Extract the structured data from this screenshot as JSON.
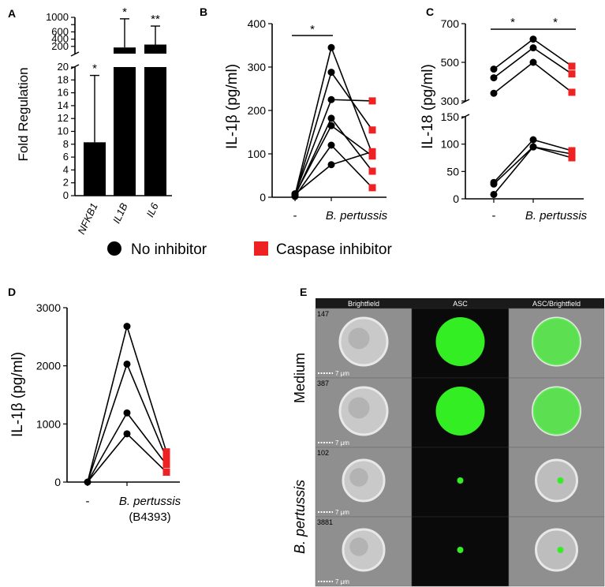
{
  "legend": {
    "no_inhibitor": "No inhibitor",
    "caspase_inhibitor": "Caspase inhibitor",
    "colors": {
      "no_inhibitor": "#000000",
      "caspase_inhibitor": "#ee2222"
    }
  },
  "chart_data": [
    {
      "panel": "A",
      "type": "bar",
      "ylabel": "Fold Regulation",
      "categories": [
        "NFKB1",
        "IL1B",
        "IL6"
      ],
      "values": [
        8.3,
        170,
        250
      ],
      "error_upper": [
        18.7,
        960,
        760
      ],
      "significance": [
        "*",
        "*",
        "**"
      ],
      "ylim_lower": [
        0,
        20
      ],
      "ylim_upper": [
        0,
        1000
      ],
      "yticks_lower": [
        "0",
        "2",
        "4",
        "6",
        "8",
        "10",
        "12",
        "14",
        "16",
        "18",
        "20"
      ],
      "yticks_upper": [
        "200",
        "400",
        "600",
        "800",
        "1000"
      ]
    },
    {
      "panel": "B",
      "type": "scatter",
      "ylabel": "IL-1β (pg/ml)",
      "categories": [
        "-",
        "B. pertussis"
      ],
      "ylim": [
        0,
        400
      ],
      "yticks": [
        "0",
        "100",
        "200",
        "300",
        "400"
      ],
      "significance": [
        {
          "from": "-",
          "to": "B. pertussis",
          "label": "*"
        }
      ],
      "no_inhibitor_pairs": [
        [
          5,
          345
        ],
        [
          3,
          288
        ],
        [
          8,
          225
        ],
        [
          4,
          182
        ],
        [
          6,
          165
        ],
        [
          2,
          120
        ],
        [
          7,
          75
        ]
      ],
      "caspase_inhibitor_pairs": [
        [
          345,
          100
        ],
        [
          288,
          155
        ],
        [
          225,
          222
        ],
        [
          182,
          60
        ],
        [
          165,
          95
        ],
        [
          120,
          22
        ],
        [
          75,
          105
        ]
      ]
    },
    {
      "panel": "C",
      "type": "scatter",
      "ylabel": "IL-18 (pg/ml)",
      "categories": [
        "-",
        "B. pertussis"
      ],
      "ylim_lower": [
        0,
        150
      ],
      "ylim_upper": [
        300,
        700
      ],
      "yticks_lower": [
        "0",
        "50",
        "100",
        "150"
      ],
      "yticks_upper": [
        "300",
        "500",
        "700"
      ],
      "significance": [
        {
          "from": "-",
          "to": "B. pertussis",
          "label": "*"
        },
        {
          "from": "B. pertussis",
          "to": "caspase",
          "label": "*"
        }
      ],
      "upper_series": [
        [
          465,
          620,
          480
        ],
        [
          420,
          575,
          440
        ],
        [
          340,
          500,
          345
        ]
      ],
      "lower_series": [
        [
          30,
          108,
          88
        ],
        [
          27,
          95,
          82
        ],
        [
          8,
          95,
          75
        ]
      ]
    },
    {
      "panel": "D",
      "type": "scatter",
      "ylabel": "IL-1β (pg/ml)",
      "categories": [
        "-",
        "B. pertussis",
        "(B4393)"
      ],
      "ylim": [
        0,
        3000
      ],
      "yticks": [
        "0",
        "1000",
        "2000",
        "3000"
      ],
      "no_inhibitor_pairs": [
        [
          0,
          2680
        ],
        [
          0,
          2030
        ],
        [
          0,
          1190
        ],
        [
          0,
          830
        ]
      ],
      "caspase_inhibitor_pairs": [
        [
          2680,
          520
        ],
        [
          2030,
          410
        ],
        [
          1190,
          300
        ],
        [
          830,
          170
        ]
      ]
    }
  ],
  "panel_e": {
    "label": "E",
    "columns": [
      "Brightfield",
      "ASC",
      "ASC/Brightfield"
    ],
    "row_groups": [
      "Medium",
      "B. pertussis"
    ],
    "cell_ids": [
      "147",
      "387",
      "102",
      "3881"
    ],
    "scale_bar": "7 μm",
    "colors": {
      "header_bg": "#1a1a1a",
      "bright_bg": "#8f8f8f",
      "asc_bg": "#0a0a0a",
      "green": "#33ee22"
    }
  }
}
